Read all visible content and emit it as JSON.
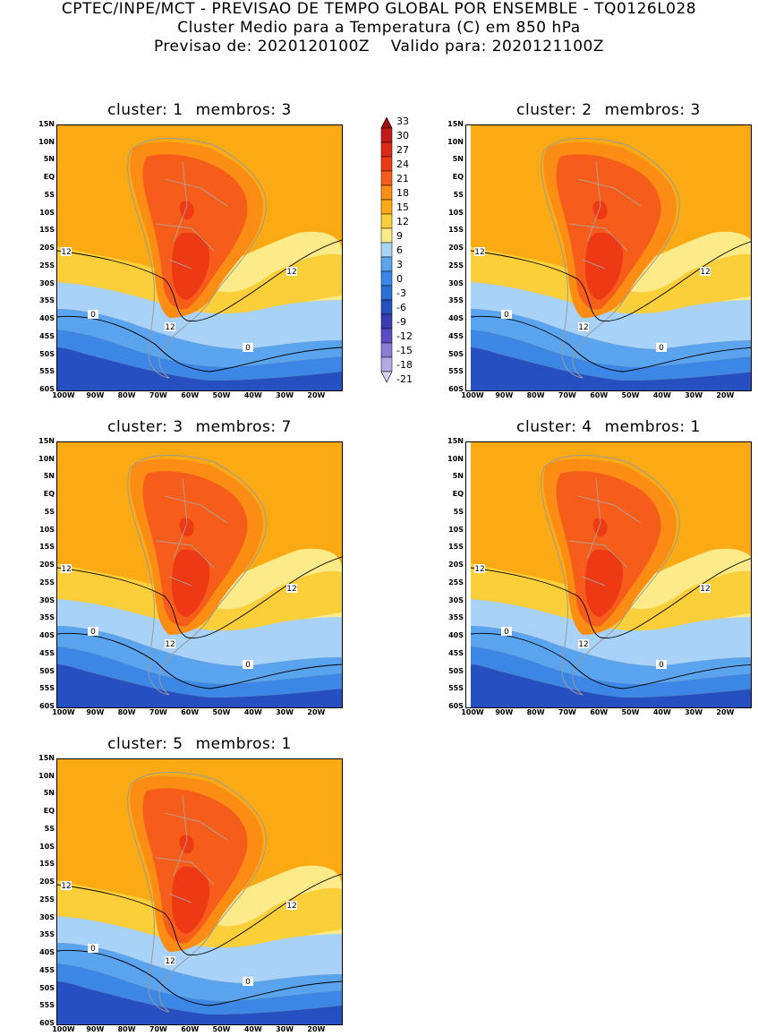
{
  "header": {
    "line1": "CPTEC/INPE/MCT - PREVISAO DE TEMPO GLOBAL POR ENSEMBLE - TQ0126L028",
    "line2": "Cluster Medio para a Temperatura (C) em 850 hPa",
    "line3_left": "Previsao de: 2020120100Z",
    "line3_right": "Valido para: 2020121100Z"
  },
  "panels": [
    {
      "cluster": "cluster: 1",
      "members": "membros: 3"
    },
    {
      "cluster": "cluster: 2",
      "members": "membros: 3"
    },
    {
      "cluster": "cluster: 3",
      "members": "membros: 7"
    },
    {
      "cluster": "cluster: 4",
      "members": "membros: 1"
    },
    {
      "cluster": "cluster: 5",
      "members": "membros: 1"
    }
  ],
  "lat_labels": [
    "15N",
    "10N",
    "5N",
    "EQ",
    "5S",
    "10S",
    "15S",
    "20S",
    "25S",
    "30S",
    "35S",
    "40S",
    "45S",
    "50S",
    "55S",
    "60S"
  ],
  "lon_labels": [
    "100W",
    "90W",
    "80W",
    "70W",
    "60W",
    "50W",
    "40W",
    "30W",
    "20W"
  ],
  "contour_labels": [
    "12",
    "0"
  ],
  "colorbar": {
    "labels": [
      "33",
      "30",
      "27",
      "24",
      "21",
      "18",
      "15",
      "12",
      "9",
      "6",
      "3",
      "0",
      "-3",
      "-6",
      "-9",
      "-12",
      "-15",
      "-18",
      "-21"
    ],
    "colors": [
      "#9b0f0f",
      "#c21a1a",
      "#d92a1a",
      "#ee3a14",
      "#f75d1a",
      "#fb8c14",
      "#fbaa14",
      "#fbcf3a",
      "#fdea88",
      "#a9d2f8",
      "#5aa3ee",
      "#3c87e6",
      "#2c6fd8",
      "#2650c2",
      "#3a3cb5",
      "#5a4cc4",
      "#8a7cd8",
      "#b4a8e6",
      "#d8d0f2"
    ]
  }
}
